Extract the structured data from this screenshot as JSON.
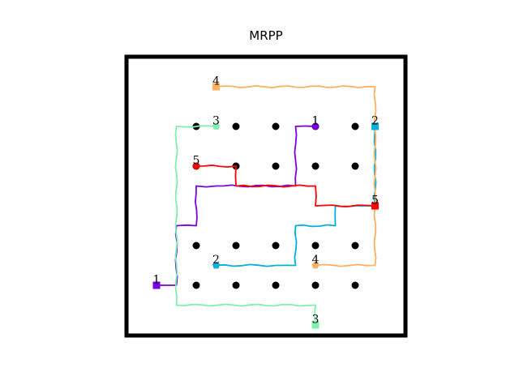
{
  "figure": {
    "title": "MRPP"
  },
  "obstacles": {
    "color": "#000000",
    "columns": [
      1,
      2,
      3,
      4,
      5
    ],
    "rows": [
      1,
      2,
      4,
      5
    ]
  },
  "agents": [
    {
      "id": "1",
      "color": "#7a00e6",
      "start_marker": "square",
      "goal_marker": "pentagon",
      "start": [
        0,
        5
      ],
      "goal": [
        4,
        1
      ],
      "path": [
        [
          0,
          5
        ],
        [
          0.5,
          5
        ],
        [
          0.5,
          3.5
        ],
        [
          1,
          3.5
        ],
        [
          1,
          2.5
        ],
        [
          1.5,
          2.5
        ],
        [
          3.5,
          2.5
        ],
        [
          3.5,
          1
        ],
        [
          4,
          1
        ]
      ]
    },
    {
      "id": "2",
      "color": "#00b0dd",
      "start_marker": "pentagon",
      "goal_marker": "square",
      "start": [
        1.5,
        4.5
      ],
      "goal": [
        5.5,
        1
      ],
      "path": [
        [
          1.5,
          4.5
        ],
        [
          3,
          4.5
        ],
        [
          3.5,
          4.5
        ],
        [
          3.5,
          3.5
        ],
        [
          4.5,
          3.5
        ],
        [
          4.5,
          3.5
        ],
        [
          4.5,
          3
        ],
        [
          5,
          3
        ],
        [
          5.5,
          3
        ],
        [
          5.5,
          1
        ]
      ]
    },
    {
      "id": "3",
      "color": "#80f0b0",
      "start_marker": "square",
      "goal_marker": "pentagon",
      "start": [
        4,
        6
      ],
      "goal": [
        1.5,
        1
      ],
      "path": [
        [
          4,
          6
        ],
        [
          4,
          5.5
        ],
        [
          0.5,
          5.5
        ],
        [
          0.5,
          1
        ],
        [
          1.5,
          1
        ]
      ]
    },
    {
      "id": "4",
      "color": "#ffb060",
      "start_marker": "pentagon",
      "goal_marker": "square",
      "start": [
        4,
        4.5
      ],
      "goal": [
        1.5,
        0
      ],
      "path": [
        [
          4,
          4.5
        ],
        [
          5.5,
          4.5
        ],
        [
          5.5,
          0
        ],
        [
          1.5,
          0
        ]
      ]
    },
    {
      "id": "5",
      "color": "#ff0000",
      "start_marker": "square",
      "goal_marker": "pentagon",
      "start": [
        5.5,
        3
      ],
      "goal": [
        1,
        2
      ],
      "path": [
        [
          5.5,
          3
        ],
        [
          4,
          3
        ],
        [
          4,
          2.5
        ],
        [
          2,
          2.5
        ],
        [
          2,
          2
        ],
        [
          1,
          2
        ]
      ]
    }
  ]
}
